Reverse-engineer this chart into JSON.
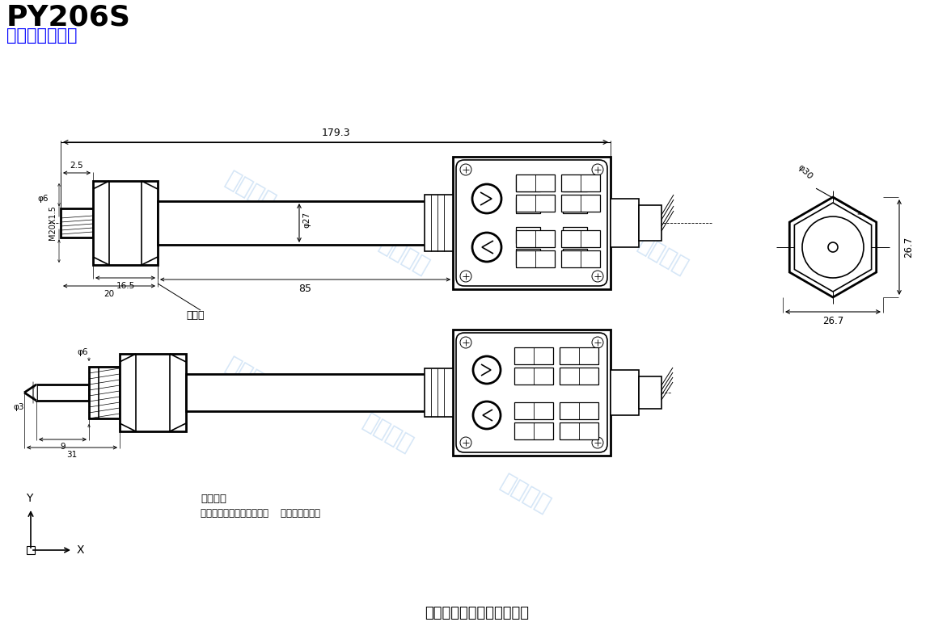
{
  "title1": "PY206S",
  "title2": "数显压力变送器",
  "title1_color": "#000000",
  "title2_color": "#0000FF",
  "bg_color": "#FFFFFF",
  "line_color": "#000000",
  "watermark_color": "#aaccee",
  "company": "佛山一众传感仪器有限公司",
  "wiring_title": "接线说明",
  "wiring_detail": "电流输出：红色线：电源正    黑色线：输出正",
  "dim_179": "179.3",
  "dim_85": "85",
  "dim_20": "20",
  "dim_16": "16.5",
  "dim_25": "2.5",
  "dim_27": "φ27",
  "dim_6a": "φ6",
  "dim_m20": "M20X1.5",
  "dim_30": "φ30",
  "dim_267": "26.7",
  "dim_6b": "φ6",
  "dim_3": "φ3",
  "dim_9": "9",
  "dim_31": "31",
  "label_yrk": "引压孔",
  "label_Y": "Y",
  "label_X": "X"
}
